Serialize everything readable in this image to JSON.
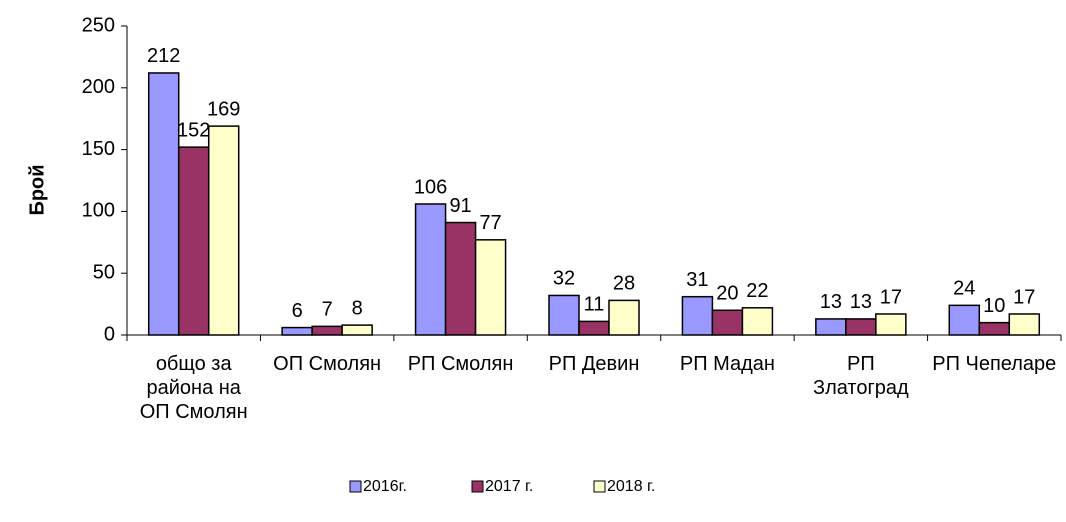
{
  "chart_data": {
    "type": "bar",
    "ylabel": "Брой",
    "categories": [
      "общо за района на ОП Смолян",
      "ОП Смолян",
      "РП Смолян",
      "РП Девин",
      "РП Мадан",
      "РП Златоград",
      "РП Чепеларе"
    ],
    "series": [
      {
        "name": "2016г.",
        "color": "#9999ff",
        "values": [
          212,
          6,
          106,
          32,
          31,
          13,
          24
        ]
      },
      {
        "name": "2017 г.",
        "color": "#993366",
        "values": [
          152,
          7,
          91,
          11,
          20,
          13,
          10
        ]
      },
      {
        "name": "2018 г.",
        "color": "#ffffcc",
        "values": [
          169,
          8,
          77,
          28,
          22,
          17,
          17
        ]
      }
    ],
    "ylim": [
      0,
      250
    ],
    "yticks": [
      0,
      50,
      100,
      150,
      200,
      250
    ],
    "legend": "bottom"
  }
}
